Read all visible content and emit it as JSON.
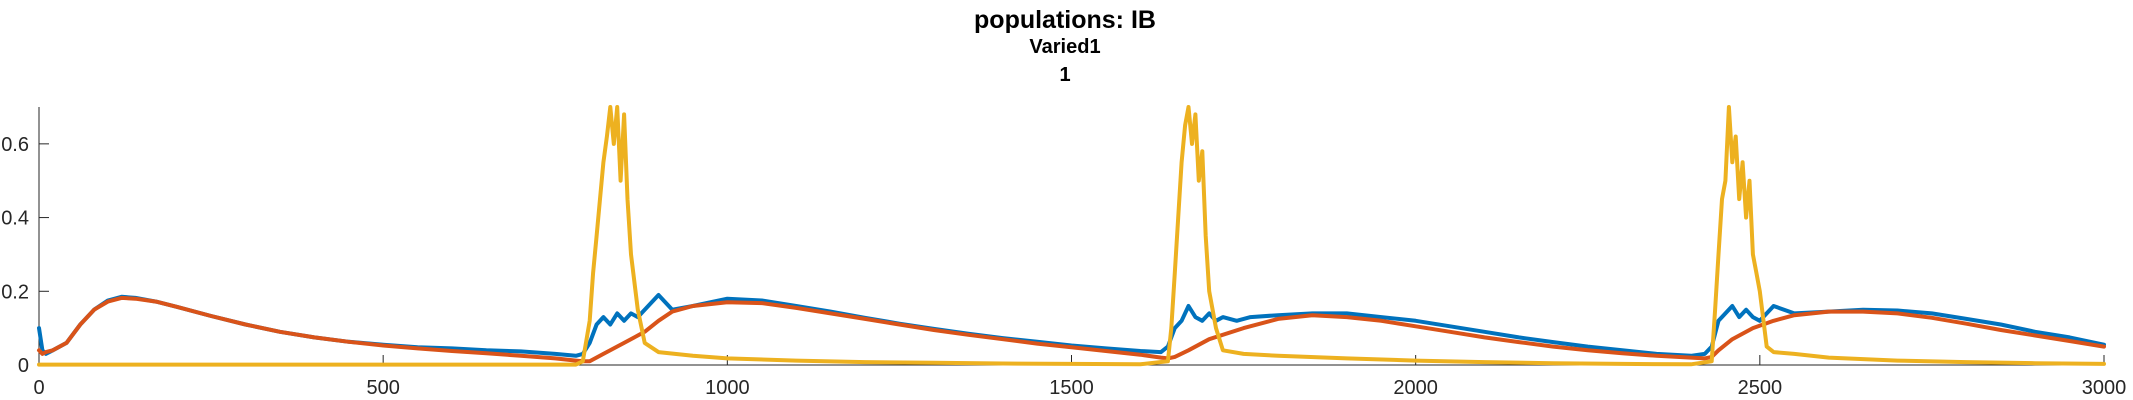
{
  "chart_data": {
    "type": "line",
    "title": "populations: IB",
    "subtitle_lines": [
      "Varied1",
      "1"
    ],
    "xlabel": "",
    "ylabel": "",
    "xlim": [
      0,
      3000
    ],
    "ylim": [
      0,
      0.7
    ],
    "x_ticks": [
      0,
      500,
      1000,
      1500,
      2000,
      2500,
      3000
    ],
    "x_tick_labels": [
      "0",
      "500",
      "1000",
      "1500",
      "2000",
      "2500",
      "3000"
    ],
    "y_ticks": [
      0,
      0.2,
      0.4,
      0.6
    ],
    "y_tick_labels": [
      "0",
      "0.2",
      "0.4",
      "0.6"
    ],
    "grid": false,
    "legend": "none",
    "series": [
      {
        "color": "#0072BD",
        "x": [
          0,
          5,
          10,
          20,
          40,
          60,
          80,
          100,
          120,
          140,
          170,
          200,
          250,
          300,
          350,
          400,
          450,
          500,
          550,
          600,
          650,
          700,
          750,
          780,
          790,
          800,
          810,
          820,
          830,
          840,
          850,
          860,
          870,
          880,
          900,
          920,
          950,
          1000,
          1050,
          1100,
          1150,
          1200,
          1250,
          1300,
          1350,
          1400,
          1450,
          1500,
          1550,
          1600,
          1630,
          1640,
          1650,
          1660,
          1670,
          1680,
          1690,
          1700,
          1710,
          1720,
          1740,
          1760,
          1800,
          1850,
          1900,
          1950,
          2000,
          2050,
          2100,
          2150,
          2200,
          2250,
          2300,
          2350,
          2400,
          2420,
          2430,
          2440,
          2450,
          2460,
          2470,
          2480,
          2490,
          2500,
          2510,
          2520,
          2550,
          2600,
          2650,
          2700,
          2750,
          2800,
          2850,
          2900,
          2950,
          3000
        ],
        "y": [
          0.1,
          0.04,
          0.03,
          0.04,
          0.06,
          0.11,
          0.15,
          0.175,
          0.185,
          0.182,
          0.172,
          0.158,
          0.133,
          0.11,
          0.09,
          0.075,
          0.063,
          0.055,
          0.048,
          0.045,
          0.04,
          0.037,
          0.03,
          0.025,
          0.03,
          0.06,
          0.11,
          0.13,
          0.11,
          0.14,
          0.12,
          0.14,
          0.13,
          0.15,
          0.19,
          0.15,
          0.16,
          0.18,
          0.175,
          0.16,
          0.145,
          0.128,
          0.112,
          0.098,
          0.085,
          0.073,
          0.063,
          0.053,
          0.045,
          0.038,
          0.035,
          0.05,
          0.1,
          0.12,
          0.16,
          0.13,
          0.12,
          0.14,
          0.12,
          0.13,
          0.12,
          0.13,
          0.135,
          0.14,
          0.14,
          0.13,
          0.12,
          0.105,
          0.09,
          0.075,
          0.062,
          0.05,
          0.04,
          0.03,
          0.025,
          0.03,
          0.05,
          0.12,
          0.14,
          0.16,
          0.13,
          0.15,
          0.13,
          0.12,
          0.14,
          0.16,
          0.14,
          0.145,
          0.15,
          0.148,
          0.14,
          0.125,
          0.11,
          0.09,
          0.075,
          0.055
        ]
      },
      {
        "color": "#D95319",
        "x": [
          0,
          5,
          10,
          20,
          40,
          60,
          80,
          100,
          120,
          140,
          170,
          200,
          250,
          300,
          350,
          400,
          450,
          500,
          550,
          600,
          650,
          700,
          750,
          780,
          790,
          800,
          820,
          850,
          880,
          900,
          920,
          950,
          1000,
          1050,
          1100,
          1150,
          1200,
          1250,
          1300,
          1350,
          1400,
          1450,
          1500,
          1550,
          1600,
          1630,
          1640,
          1650,
          1670,
          1700,
          1750,
          1800,
          1850,
          1900,
          1950,
          2000,
          2050,
          2100,
          2150,
          2200,
          2250,
          2300,
          2350,
          2400,
          2420,
          2430,
          2440,
          2460,
          2490,
          2520,
          2550,
          2600,
          2650,
          2700,
          2750,
          2800,
          2850,
          2900,
          2950,
          3000
        ],
        "y": [
          0.04,
          0.03,
          0.035,
          0.04,
          0.06,
          0.11,
          0.15,
          0.172,
          0.182,
          0.18,
          0.172,
          0.158,
          0.133,
          0.11,
          0.09,
          0.075,
          0.063,
          0.053,
          0.045,
          0.038,
          0.032,
          0.025,
          0.018,
          0.012,
          0.01,
          0.01,
          0.03,
          0.06,
          0.09,
          0.12,
          0.145,
          0.16,
          0.17,
          0.168,
          0.155,
          0.14,
          0.125,
          0.11,
          0.095,
          0.082,
          0.07,
          0.058,
          0.048,
          0.038,
          0.028,
          0.02,
          0.018,
          0.022,
          0.04,
          0.07,
          0.1,
          0.125,
          0.135,
          0.13,
          0.12,
          0.105,
          0.09,
          0.075,
          0.062,
          0.05,
          0.04,
          0.032,
          0.025,
          0.02,
          0.018,
          0.022,
          0.04,
          0.07,
          0.1,
          0.12,
          0.135,
          0.145,
          0.145,
          0.14,
          0.128,
          0.112,
          0.095,
          0.08,
          0.065,
          0.05
        ]
      },
      {
        "color": "#EDB120",
        "x": [
          0,
          100,
          200,
          300,
          400,
          500,
          600,
          700,
          780,
          790,
          800,
          805,
          810,
          815,
          820,
          825,
          830,
          835,
          840,
          845,
          850,
          855,
          860,
          870,
          880,
          900,
          950,
          1000,
          1100,
          1200,
          1300,
          1400,
          1500,
          1600,
          1640,
          1645,
          1650,
          1655,
          1660,
          1665,
          1670,
          1675,
          1680,
          1685,
          1690,
          1695,
          1700,
          1710,
          1720,
          1750,
          1800,
          1900,
          2000,
          2100,
          2200,
          2300,
          2400,
          2430,
          2435,
          2440,
          2445,
          2450,
          2455,
          2460,
          2465,
          2470,
          2475,
          2480,
          2485,
          2490,
          2495,
          2500,
          2510,
          2520,
          2550,
          2600,
          2700,
          2800,
          2900,
          3000
        ],
        "y": [
          0.001,
          0.001,
          0.001,
          0.001,
          0.001,
          0.001,
          0.001,
          0.001,
          0.001,
          0.01,
          0.12,
          0.25,
          0.35,
          0.45,
          0.55,
          0.62,
          0.7,
          0.6,
          0.7,
          0.5,
          0.68,
          0.45,
          0.3,
          0.15,
          0.06,
          0.035,
          0.025,
          0.018,
          0.012,
          0.008,
          0.006,
          0.004,
          0.003,
          0.002,
          0.01,
          0.1,
          0.25,
          0.4,
          0.55,
          0.65,
          0.7,
          0.6,
          0.68,
          0.5,
          0.58,
          0.35,
          0.2,
          0.1,
          0.04,
          0.03,
          0.025,
          0.018,
          0.012,
          0.008,
          0.005,
          0.003,
          0.002,
          0.01,
          0.15,
          0.3,
          0.45,
          0.5,
          0.7,
          0.55,
          0.62,
          0.45,
          0.55,
          0.4,
          0.5,
          0.3,
          0.25,
          0.2,
          0.05,
          0.035,
          0.03,
          0.02,
          0.012,
          0.008,
          0.005,
          0.003
        ]
      }
    ]
  }
}
